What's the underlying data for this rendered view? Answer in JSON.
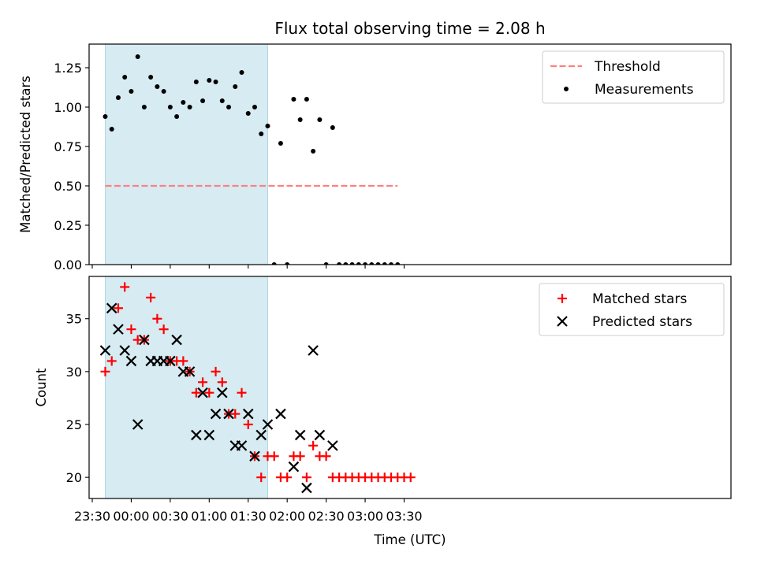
{
  "chart_data": [
    {
      "type": "scatter",
      "title": "Flux total observing time = 2.08 h",
      "xlabel": "",
      "ylabel": "Matched/Predicted stars",
      "ylim": [
        0,
        1.4
      ],
      "yticks": [
        "0.00",
        "0.25",
        "0.50",
        "0.75",
        "1.00",
        "1.25"
      ],
      "highlight": {
        "x0": 10,
        "x1": 135,
        "color": "#add8e6"
      },
      "legend_position": "top-right",
      "legend": [
        "Threshold",
        "Measurements"
      ],
      "threshold": {
        "name": "Threshold",
        "y": 0.5,
        "x_from": 10,
        "x_to": 235,
        "color": "#ff7f7f"
      },
      "series": [
        {
          "name": "Measurements",
          "color": "#000000",
          "x": [
            10,
            15,
            20,
            25,
            30,
            35,
            40,
            45,
            50,
            55,
            60,
            65,
            70,
            75,
            80,
            85,
            90,
            95,
            100,
            105,
            110,
            115,
            120,
            125,
            130,
            135,
            140,
            145,
            150,
            155,
            160,
            165,
            170,
            175,
            180,
            185,
            190,
            195,
            200,
            205,
            210,
            215,
            220,
            225,
            230,
            235
          ],
          "values": [
            0.94,
            0.86,
            1.06,
            1.19,
            1.1,
            1.32,
            1.0,
            1.19,
            1.13,
            1.1,
            1.0,
            0.94,
            1.03,
            1.0,
            1.16,
            1.04,
            1.17,
            1.16,
            1.04,
            1.0,
            1.13,
            1.22,
            0.96,
            1.0,
            0.83,
            0.88,
            0.0,
            0.77,
            0.0,
            1.05,
            0.92,
            1.05,
            0.72,
            0.92,
            0.0,
            0.87,
            0.0,
            0.0,
            0.0,
            0.0,
            0.0,
            0.0,
            0.0,
            0.0,
            0.0,
            0.0
          ]
        }
      ]
    },
    {
      "type": "scatter",
      "title": "",
      "xlabel": "Time (UTC)",
      "ylabel": "Count",
      "ylim": [
        18,
        39
      ],
      "yticks": [
        "20",
        "25",
        "30",
        "35"
      ],
      "xticks": [
        "23:30",
        "00:00",
        "00:30",
        "01:00",
        "01:30",
        "02:00",
        "02:30",
        "03:00",
        "03:30"
      ],
      "highlight": {
        "x0": 10,
        "x1": 135,
        "color": "#add8e6"
      },
      "legend_position": "top-right",
      "legend": [
        "Matched stars",
        "Predicted stars"
      ],
      "series": [
        {
          "name": "Matched stars",
          "color": "#ff0000",
          "x": [
            10,
            15,
            20,
            25,
            30,
            35,
            40,
            45,
            50,
            55,
            60,
            65,
            70,
            75,
            80,
            85,
            90,
            95,
            100,
            105,
            110,
            115,
            120,
            125,
            130,
            135,
            140,
            145,
            150,
            155,
            160,
            165,
            170,
            175,
            180,
            185,
            190,
            195,
            200,
            205,
            210,
            215,
            220,
            225,
            230,
            235,
            240,
            245
          ],
          "values": [
            30,
            31,
            36,
            38,
            34,
            33,
            33,
            37,
            35,
            34,
            31,
            31,
            31,
            30,
            28,
            29,
            28,
            30,
            29,
            26,
            26,
            28,
            25,
            22,
            20,
            22,
            22,
            20,
            20,
            22,
            22,
            20,
            23,
            22,
            22,
            20,
            20,
            20,
            20,
            20,
            20,
            20,
            20,
            20,
            20,
            20,
            20,
            20
          ]
        },
        {
          "name": "Predicted stars",
          "color": "#000000",
          "x": [
            10,
            15,
            20,
            25,
            30,
            35,
            40,
            45,
            50,
            55,
            60,
            65,
            70,
            75,
            80,
            85,
            90,
            95,
            100,
            105,
            110,
            115,
            120,
            125,
            130,
            135,
            145,
            155,
            160,
            165,
            170,
            175,
            185
          ],
          "values": [
            32,
            36,
            34,
            32,
            31,
            25,
            33,
            31,
            31,
            31,
            31,
            33,
            30,
            30,
            24,
            28,
            24,
            26,
            28,
            26,
            23,
            23,
            26,
            22,
            24,
            25,
            26,
            21,
            24,
            19,
            32,
            24,
            23
          ]
        }
      ]
    }
  ]
}
